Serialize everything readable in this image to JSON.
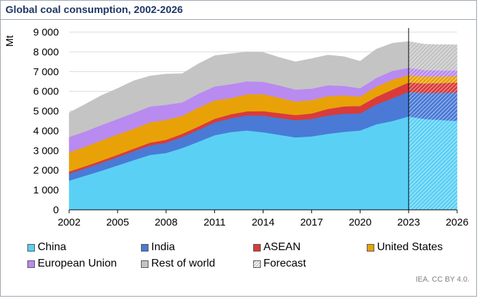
{
  "title": "Global coal consumption, 2002-2026",
  "credit": "IEA. CC BY 4.0.",
  "colors": {
    "China": "#5bd0f5",
    "India": "#4a7ad6",
    "ASEAN": "#d93b3b",
    "United States": "#e8a208",
    "European Union": "#b98af0",
    "Rest of world": "#c4c4c4",
    "Forecast": "#ffffff"
  },
  "chart_data": {
    "type": "area",
    "stacked": true,
    "title": "Global coal consumption, 2002-2026",
    "ylabel": "Mt",
    "xlabel": "",
    "ylim": [
      0,
      9000
    ],
    "yticks": [
      0,
      1000,
      2000,
      3000,
      4000,
      5000,
      6000,
      7000,
      8000,
      9000
    ],
    "ytick_labels": [
      "0",
      "1 000",
      "2 000",
      "3 000",
      "4 000",
      "5 000",
      "6 000",
      "7 000",
      "8 000",
      "9 000"
    ],
    "xticks": [
      2002,
      2005,
      2008,
      2011,
      2014,
      2017,
      2020,
      2023,
      2026
    ],
    "x": [
      2002,
      2003,
      2004,
      2005,
      2006,
      2007,
      2008,
      2009,
      2010,
      2011,
      2012,
      2013,
      2014,
      2015,
      2016,
      2017,
      2018,
      2019,
      2020,
      2021,
      2022,
      2023,
      2024,
      2025,
      2026
    ],
    "forecast_start": 2023,
    "forecast_label": "Forecast",
    "grid": "horizontal",
    "legend_position": "bottom",
    "series": [
      {
        "name": "China",
        "values": [
          1480,
          1730,
          1980,
          2250,
          2520,
          2780,
          2880,
          3130,
          3450,
          3780,
          3940,
          4020,
          3930,
          3800,
          3670,
          3720,
          3850,
          3950,
          4020,
          4330,
          4500,
          4730,
          4600,
          4550,
          4500
        ]
      },
      {
        "name": "India",
        "values": [
          360,
          370,
          400,
          420,
          450,
          480,
          520,
          560,
          600,
          650,
          700,
          760,
          840,
          850,
          870,
          880,
          930,
          920,
          860,
          1000,
          1150,
          1250,
          1320,
          1380,
          1450
        ]
      },
      {
        "name": "ASEAN",
        "values": [
          100,
          110,
          115,
          120,
          130,
          140,
          150,
          160,
          170,
          180,
          200,
          210,
          230,
          250,
          260,
          280,
          330,
          370,
          380,
          390,
          440,
          470,
          480,
          490,
          500
        ]
      },
      {
        "name": "United States",
        "values": [
          970,
          990,
          1020,
          1030,
          1010,
          1030,
          1010,
          910,
          960,
          930,
          820,
          860,
          860,
          780,
          690,
          680,
          650,
          560,
          480,
          520,
          500,
          380,
          350,
          330,
          320
        ]
      },
      {
        "name": "European Union",
        "values": [
          780,
          770,
          780,
          780,
          800,
          800,
          760,
          680,
          700,
          710,
          700,
          660,
          630,
          620,
          600,
          580,
          550,
          480,
          420,
          440,
          450,
          360,
          330,
          310,
          290
        ]
      },
      {
        "name": "Rest of world",
        "values": [
          1230,
          1380,
          1500,
          1550,
          1630,
          1550,
          1560,
          1460,
          1520,
          1560,
          1550,
          1490,
          1490,
          1420,
          1410,
          1520,
          1530,
          1480,
          1370,
          1460,
          1400,
          1340,
          1310,
          1310,
          1300
        ]
      }
    ]
  }
}
